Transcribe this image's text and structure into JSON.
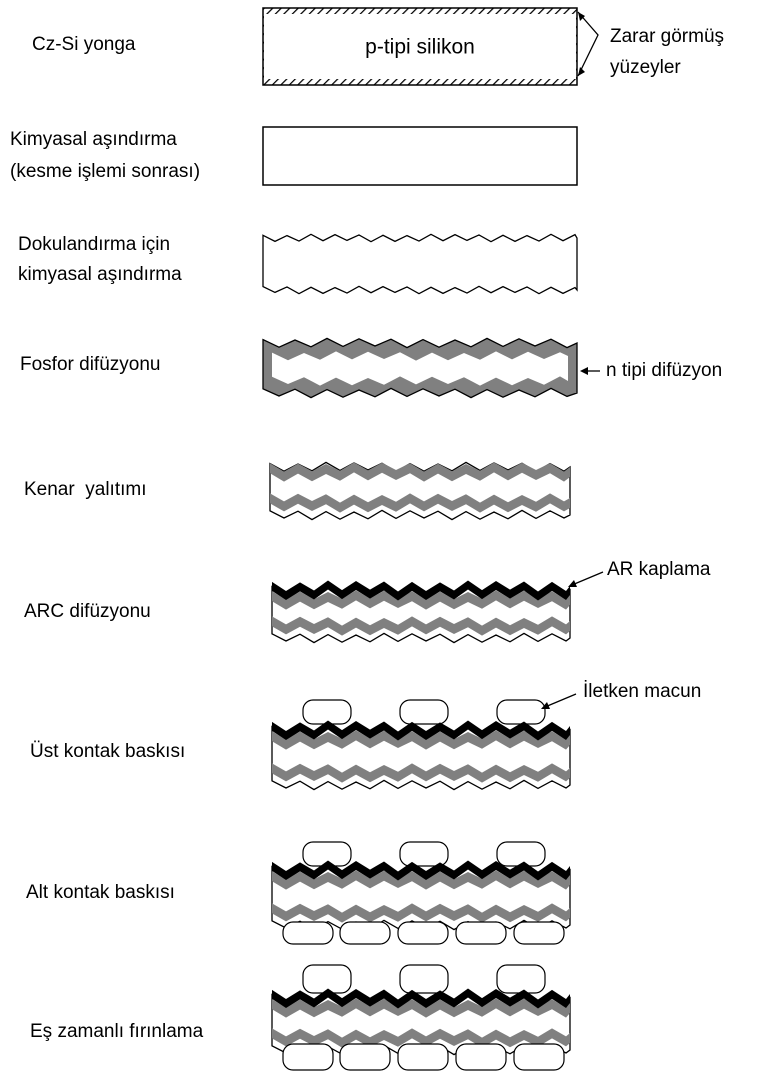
{
  "steps": [
    {
      "label": [
        "Cz-Si yonga"
      ]
    },
    {
      "label": [
        "Kimyasal aşındırma",
        "(kesme işlemi sonrası)"
      ]
    },
    {
      "label": [
        "Dokulandırma için",
        "kimyasal aşındırma"
      ]
    },
    {
      "label": [
        "Fosfor difüzyonu"
      ]
    },
    {
      "label": [
        "Kenar  yalıtımı"
      ]
    },
    {
      "label": [
        "ARC difüzyonu"
      ]
    },
    {
      "label": [
        "Üst kontak baskısı"
      ]
    },
    {
      "label": [
        "Alt kontak baskısı"
      ]
    },
    {
      "label": [
        "Eş zamanlı fırınlama"
      ]
    }
  ],
  "annotations": {
    "wafer": "p-tipi silikon",
    "damaged_surfaces": [
      "Zarar görmüş",
      "yüzeyler"
    ],
    "n_diffusion": "n tipi difüzyon",
    "ar_coating": "AR kaplama",
    "conductive_paste": "İletken macun"
  }
}
